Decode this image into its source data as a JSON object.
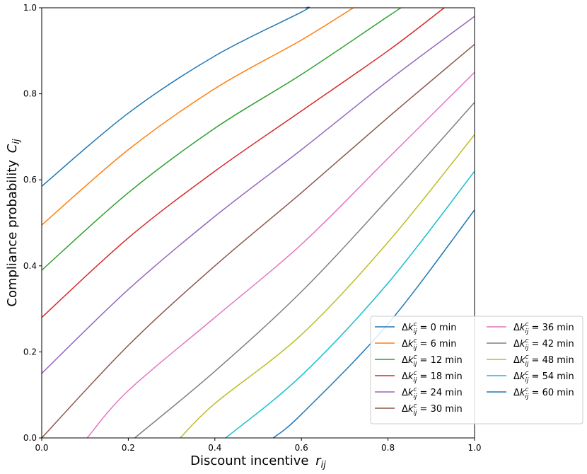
{
  "chart_data": {
    "type": "line",
    "xlabel_main": "Discount incentive",
    "xlabel_var": "r",
    "xlabel_sub": "ij",
    "ylabel_main": "Compliance probability",
    "ylabel_var": "C",
    "ylabel_sub": "ij",
    "xlim": [
      0,
      1
    ],
    "ylim": [
      0,
      1
    ],
    "xticks": [
      "0.0",
      "0.2",
      "0.4",
      "0.6",
      "0.8",
      "1.0"
    ],
    "yticks": [
      "0.0",
      "0.2",
      "0.4",
      "0.6",
      "0.8",
      "1.0"
    ],
    "grid": false,
    "legend_position": "lower-right",
    "legend_columns": 2,
    "legend_label_prefix": "Δk",
    "legend_label_sup": "c",
    "legend_label_sub": "ij",
    "series": [
      {
        "name": "Δkcij = 0 min",
        "label_suffix": " = 0 min",
        "color": "#1f77b4",
        "x": [
          0,
          0.2,
          0.4,
          0.6,
          0.61
        ],
        "y": [
          0.585,
          0.755,
          0.888,
          0.99,
          1.0
        ]
      },
      {
        "name": "Δkcij = 6 min",
        "label_suffix": " = 6 min",
        "color": "#ff7f0e",
        "x": [
          0,
          0.2,
          0.4,
          0.6,
          0.72
        ],
        "y": [
          0.495,
          0.67,
          0.812,
          0.925,
          1.0
        ]
      },
      {
        "name": "Δkcij = 12 min",
        "label_suffix": " = 12 min",
        "color": "#2ca02c",
        "x": [
          0,
          0.2,
          0.4,
          0.6,
          0.8,
          0.83
        ],
        "y": [
          0.39,
          0.57,
          0.72,
          0.845,
          0.98,
          1.0
        ]
      },
      {
        "name": "Δkcij = 18 min",
        "label_suffix": " = 18 min",
        "color": "#d62728",
        "x": [
          0,
          0.2,
          0.4,
          0.6,
          0.8,
          0.93
        ],
        "y": [
          0.28,
          0.465,
          0.62,
          0.76,
          0.9,
          1.0
        ]
      },
      {
        "name": "Δkcij = 24 min",
        "label_suffix": " = 24 min",
        "color": "#9467bd",
        "x": [
          0,
          0.2,
          0.4,
          0.6,
          0.8,
          1.0
        ],
        "y": [
          0.15,
          0.345,
          0.515,
          0.67,
          0.83,
          0.98
        ]
      },
      {
        "name": "Δkcij = 30 min",
        "label_suffix": " = 30 min",
        "color": "#8c564b",
        "x": [
          0,
          0.2,
          0.4,
          0.6,
          0.8,
          1.0
        ],
        "y": [
          0.0,
          0.215,
          0.4,
          0.57,
          0.745,
          0.915
        ]
      },
      {
        "name": "Δkcij = 36 min",
        "label_suffix": " = 36 min",
        "color": "#e377c2",
        "x": [
          0.105,
          0.2,
          0.4,
          0.6,
          0.8,
          1.0
        ],
        "y": [
          0.0,
          0.11,
          0.28,
          0.45,
          0.65,
          0.85
        ]
      },
      {
        "name": "Δkcij = 42 min",
        "label_suffix": " = 42 min",
        "color": "#7f7f7f",
        "x": [
          0.215,
          0.4,
          0.6,
          0.8,
          1.0
        ],
        "y": [
          0.0,
          0.155,
          0.34,
          0.555,
          0.78
        ]
      },
      {
        "name": "Δkcij = 48 min",
        "label_suffix": " = 48 min",
        "color": "#bcbd22",
        "x": [
          0.32,
          0.4,
          0.6,
          0.8,
          1.0
        ],
        "y": [
          0.0,
          0.08,
          0.24,
          0.455,
          0.705
        ]
      },
      {
        "name": "Δkcij = 54 min",
        "label_suffix": " = 54 min",
        "color": "#17becf",
        "x": [
          0.425,
          0.6,
          0.8,
          1.0
        ],
        "y": [
          0.0,
          0.145,
          0.36,
          0.62
        ]
      },
      {
        "name": "Δkcij = 60 min",
        "label_suffix": " = 60 min",
        "color": "#1f77b4",
        "x": [
          0.535,
          0.6,
          0.8,
          1.0
        ],
        "y": [
          0.0,
          0.055,
          0.265,
          0.53
        ]
      }
    ]
  }
}
